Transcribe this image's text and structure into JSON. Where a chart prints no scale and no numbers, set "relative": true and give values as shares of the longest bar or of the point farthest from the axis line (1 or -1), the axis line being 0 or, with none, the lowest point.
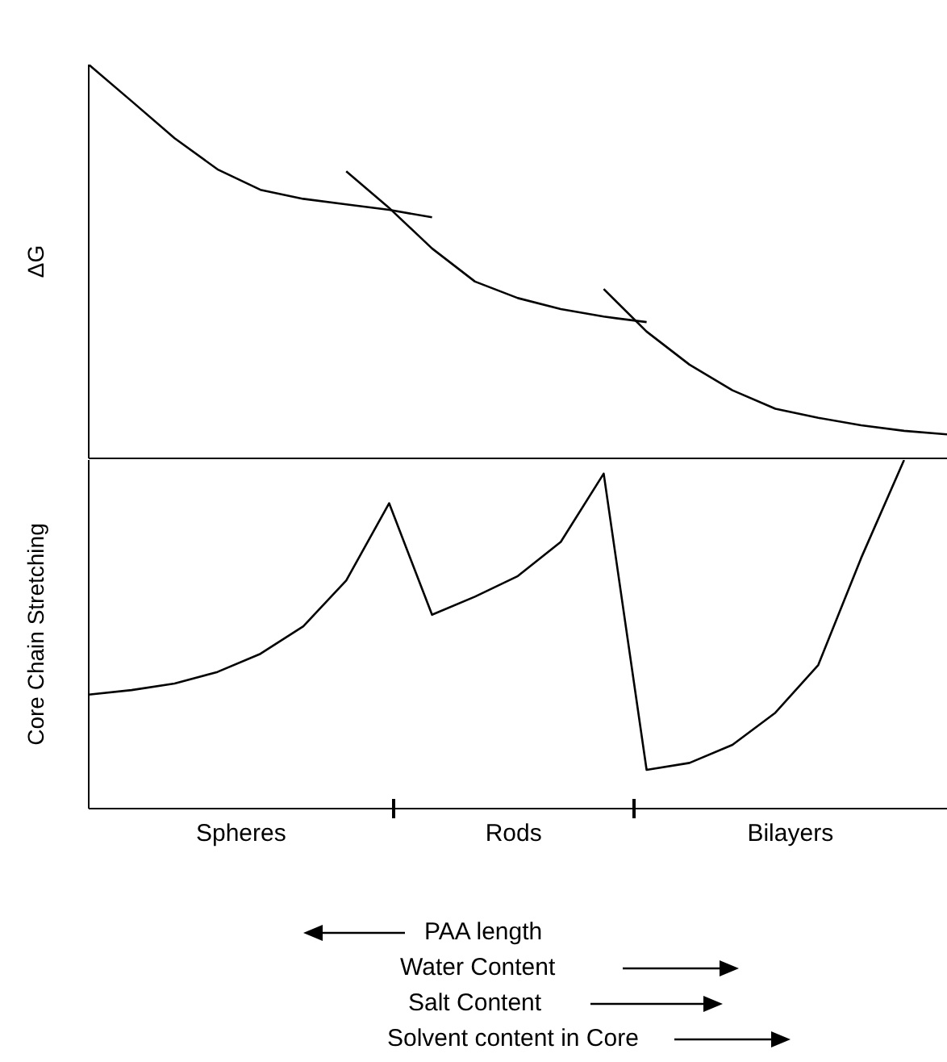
{
  "chart_data": [
    {
      "type": "line",
      "ylabel": "ΔG",
      "relative": true,
      "categories": [
        null,
        null,
        null,
        null,
        null,
        null,
        null,
        null,
        null,
        null,
        null,
        null,
        null,
        null,
        null,
        null,
        null,
        null,
        null,
        null,
        null
      ],
      "marker": "none",
      "line_style": "solid",
      "series": [
        {
          "color": "#000000",
          "values": [
            1,
            0.907,
            0.813,
            0.734,
            0.682,
            0.659,
            0.645,
            0.631,
            0.612,
            null,
            null,
            null,
            null,
            null,
            null,
            null,
            null,
            null,
            null,
            null,
            null
          ]
        },
        {
          "color": "#000000",
          "values": [
            null,
            null,
            null,
            null,
            null,
            null,
            0.729,
            0.636,
            0.533,
            0.449,
            0.407,
            0.379,
            0.36,
            0.346,
            null,
            null,
            null,
            null,
            null,
            null,
            null
          ]
        },
        {
          "color": "#000000",
          "values": [
            null,
            null,
            null,
            null,
            null,
            null,
            null,
            null,
            null,
            null,
            null,
            null,
            0.43,
            0.322,
            0.238,
            0.173,
            0.126,
            0.103,
            0.084,
            0.07,
            0.061
          ]
        }
      ]
    },
    {
      "type": "line",
      "ylabel": "Core Chain Stretching",
      "relative": true,
      "categories": [
        null,
        null,
        null,
        null,
        null,
        null,
        null,
        null,
        null,
        null,
        null,
        null,
        null,
        null,
        null,
        null,
        null,
        null,
        null,
        null,
        null
      ],
      "marker": "none",
      "line_style": "solid",
      "series": [
        {
          "color": "#000000",
          "values": [
            0.327,
            0.34,
            0.359,
            0.392,
            0.444,
            0.523,
            0.654,
            0.876,
            0.556,
            0.608,
            0.667,
            0.765,
            0.961,
            0.111,
            0.131,
            0.183,
            0.275,
            0.412,
            0.719,
            1,
            null
          ]
        }
      ],
      "annotations": [
        "Spheres",
        "Rods",
        "Bilayers",
        "PAA length",
        "Water Content",
        "Salt Content",
        "Solvent content in Core"
      ]
    }
  ]
}
